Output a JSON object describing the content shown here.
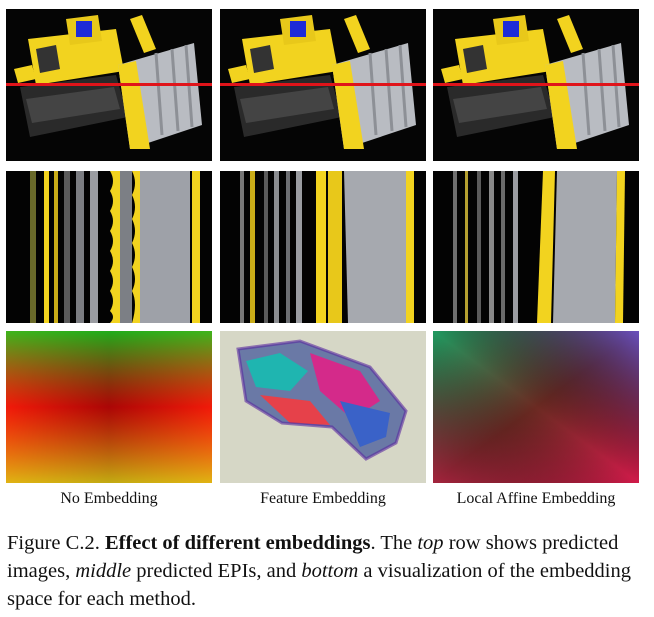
{
  "figure": {
    "columns": [
      {
        "label": "No Embedding"
      },
      {
        "label": "Feature Embedding"
      },
      {
        "label": "Local Affine Embedding"
      }
    ],
    "rows": [
      "predicted-image",
      "predicted-epi",
      "embedding-visualization"
    ],
    "colors": {
      "marker_line": "#e0141a",
      "bulldozer_yellow": "#f2d31f",
      "background": "#000000"
    },
    "caption": {
      "prefix": "Figure C.2. ",
      "title": "Effect of different embeddings",
      "t1": ". The ",
      "top": "top",
      "t2": " row shows predicted images, ",
      "middle": "middle",
      "t3": " predicted EPIs, and ",
      "bottom": "bottom",
      "t4": " a visualization of the embedding space for each method."
    }
  }
}
